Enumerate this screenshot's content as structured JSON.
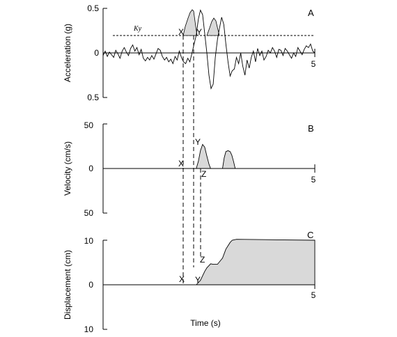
{
  "chart_data": [
    {
      "type": "line",
      "panel": "A",
      "ylabel": "Acceleration (g)",
      "ylim": [
        -0.5,
        0.5
      ],
      "y_tick_labels": [
        "0.5",
        "0",
        "0.5"
      ],
      "x_tick_label": "5",
      "xlim": [
        0,
        5
      ],
      "threshold": {
        "label": "Ky",
        "value": 0.2
      },
      "point_labels": [
        "X",
        "Y"
      ],
      "series": [
        {
          "x": [
            0,
            0.05,
            0.1,
            0.15,
            0.2,
            0.25,
            0.3,
            0.35,
            0.4,
            0.45,
            0.5,
            0.55,
            0.6,
            0.65,
            0.7,
            0.75,
            0.8,
            0.85,
            0.9,
            0.95,
            1.0,
            1.05,
            1.1,
            1.15,
            1.2,
            1.25,
            1.3,
            1.35,
            1.4,
            1.45,
            1.5,
            1.55,
            1.6,
            1.65,
            1.7,
            1.75,
            1.8,
            1.85,
            1.9,
            1.95,
            2.0,
            2.05,
            2.1,
            2.15,
            2.2,
            2.25,
            2.3,
            2.35,
            2.4,
            2.45,
            2.5,
            2.55,
            2.6,
            2.65,
            2.7,
            2.75,
            2.8,
            2.85,
            2.9,
            2.95,
            3.0,
            3.05,
            3.1,
            3.15,
            3.2,
            3.25,
            3.3,
            3.35,
            3.4,
            3.45,
            3.5,
            3.55,
            3.6,
            3.65,
            3.7,
            3.75,
            3.8,
            3.85,
            3.9,
            3.95,
            4.0,
            4.05,
            4.1,
            4.15,
            4.2,
            4.25,
            4.3,
            4.35,
            4.4,
            4.45,
            4.5,
            4.55,
            4.6,
            4.65,
            4.7,
            4.75,
            4.8,
            4.85,
            4.9,
            4.95,
            5.0
          ],
          "y": [
            -0.03,
            0.02,
            -0.04,
            0.01,
            -0.02,
            -0.05,
            0.03,
            -0.01,
            -0.06,
            0.02,
            0.06,
            0.01,
            -0.03,
            0.05,
            0.09,
            0.02,
            0.06,
            -0.02,
            0.04,
            -0.06,
            -0.09,
            -0.05,
            -0.08,
            -0.03,
            -0.07,
            -0.01,
            0.05,
            0.03,
            -0.04,
            -0.08,
            -0.05,
            -0.1,
            -0.07,
            -0.12,
            -0.04,
            -0.08,
            0.02,
            -0.05,
            -0.1,
            -0.12,
            -0.06,
            -0.1,
            0.0,
            0.1,
            0.2,
            0.38,
            0.48,
            0.43,
            0.22,
            0.0,
            -0.25,
            -0.4,
            -0.35,
            -0.05,
            0.15,
            0.28,
            0.4,
            0.32,
            0.1,
            -0.1,
            -0.26,
            -0.2,
            -0.18,
            -0.05,
            -0.12,
            0.0,
            -0.15,
            -0.25,
            -0.08,
            -0.17,
            -0.05,
            0.02,
            -0.1,
            0.05,
            -0.03,
            0.02,
            -0.08,
            -0.04,
            0.03,
            0.0,
            0.06,
            0.02,
            -0.05,
            0.04,
            0.03,
            -0.03,
            0.05,
            0.02,
            -0.02,
            -0.06,
            0.0,
            -0.04,
            0.06,
            0.02,
            -0.02,
            0.04,
            0.08,
            0.06,
            0.1,
            0.02,
            0.0
          ]
        }
      ]
    },
    {
      "type": "area",
      "panel": "B",
      "ylabel": "Velocity (cm/s)",
      "ylim": [
        -50,
        50
      ],
      "y_tick_labels": [
        "50",
        "0",
        "50"
      ],
      "x_tick_label": "5",
      "xlim": [
        0,
        5
      ],
      "point_labels": [
        "X",
        "Y",
        "Z"
      ],
      "series": [
        {
          "x": [
            2.2,
            2.25,
            2.3,
            2.35,
            2.4,
            2.45,
            2.5,
            2.54
          ],
          "y": [
            0,
            8,
            20,
            27,
            24,
            14,
            5,
            0
          ]
        },
        {
          "x": [
            2.82,
            2.86,
            2.9,
            2.95,
            3.0,
            3.04,
            3.08,
            3.12
          ],
          "y": [
            0,
            12,
            19,
            20,
            19,
            15,
            8,
            0
          ]
        }
      ]
    },
    {
      "type": "area",
      "panel": "C",
      "ylabel": "Displacement (cm)",
      "xlabel": "Time (s)",
      "ylim": [
        -10,
        10
      ],
      "y_tick_labels": [
        "10",
        "0",
        "10"
      ],
      "x_tick_label": "5",
      "xlim": [
        0,
        5
      ],
      "point_labels": [
        "X",
        "Y",
        "Z"
      ],
      "series": [
        {
          "x": [
            2.2,
            2.3,
            2.4,
            2.45,
            2.54,
            2.6,
            2.7,
            2.82,
            2.9,
            3.0,
            3.05,
            3.15,
            4.1,
            5.0
          ],
          "y": [
            0,
            1.0,
            3.0,
            3.8,
            4.7,
            4.6,
            4.6,
            6.0,
            8.0,
            9.5,
            10.0,
            10.2,
            10.1,
            10.0
          ]
        }
      ]
    }
  ]
}
